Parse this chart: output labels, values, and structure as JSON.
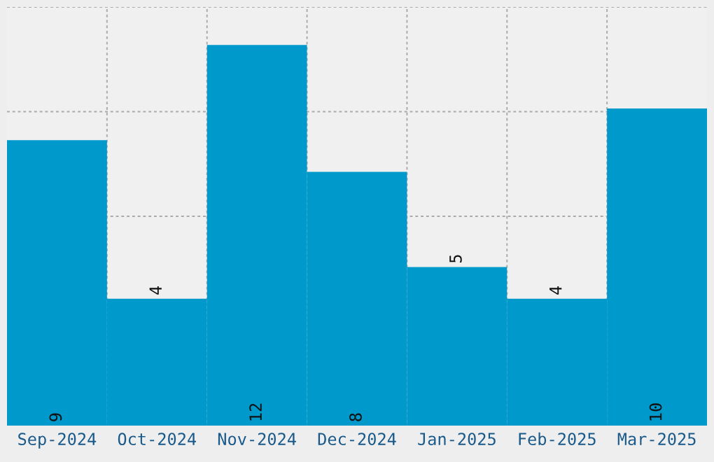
{
  "chart_data": {
    "type": "bar",
    "categories": [
      "Sep-2024",
      "Oct-2024",
      "Nov-2024",
      "Dec-2024",
      "Jan-2025",
      "Feb-2025",
      "Mar-2025"
    ],
    "values": [
      9,
      4,
      12,
      8,
      5,
      4,
      10
    ],
    "color": "#0099cc",
    "ylim": [
      0,
      13.2
    ],
    "tick_labels": "x",
    "data_labels": true,
    "grid": true
  }
}
